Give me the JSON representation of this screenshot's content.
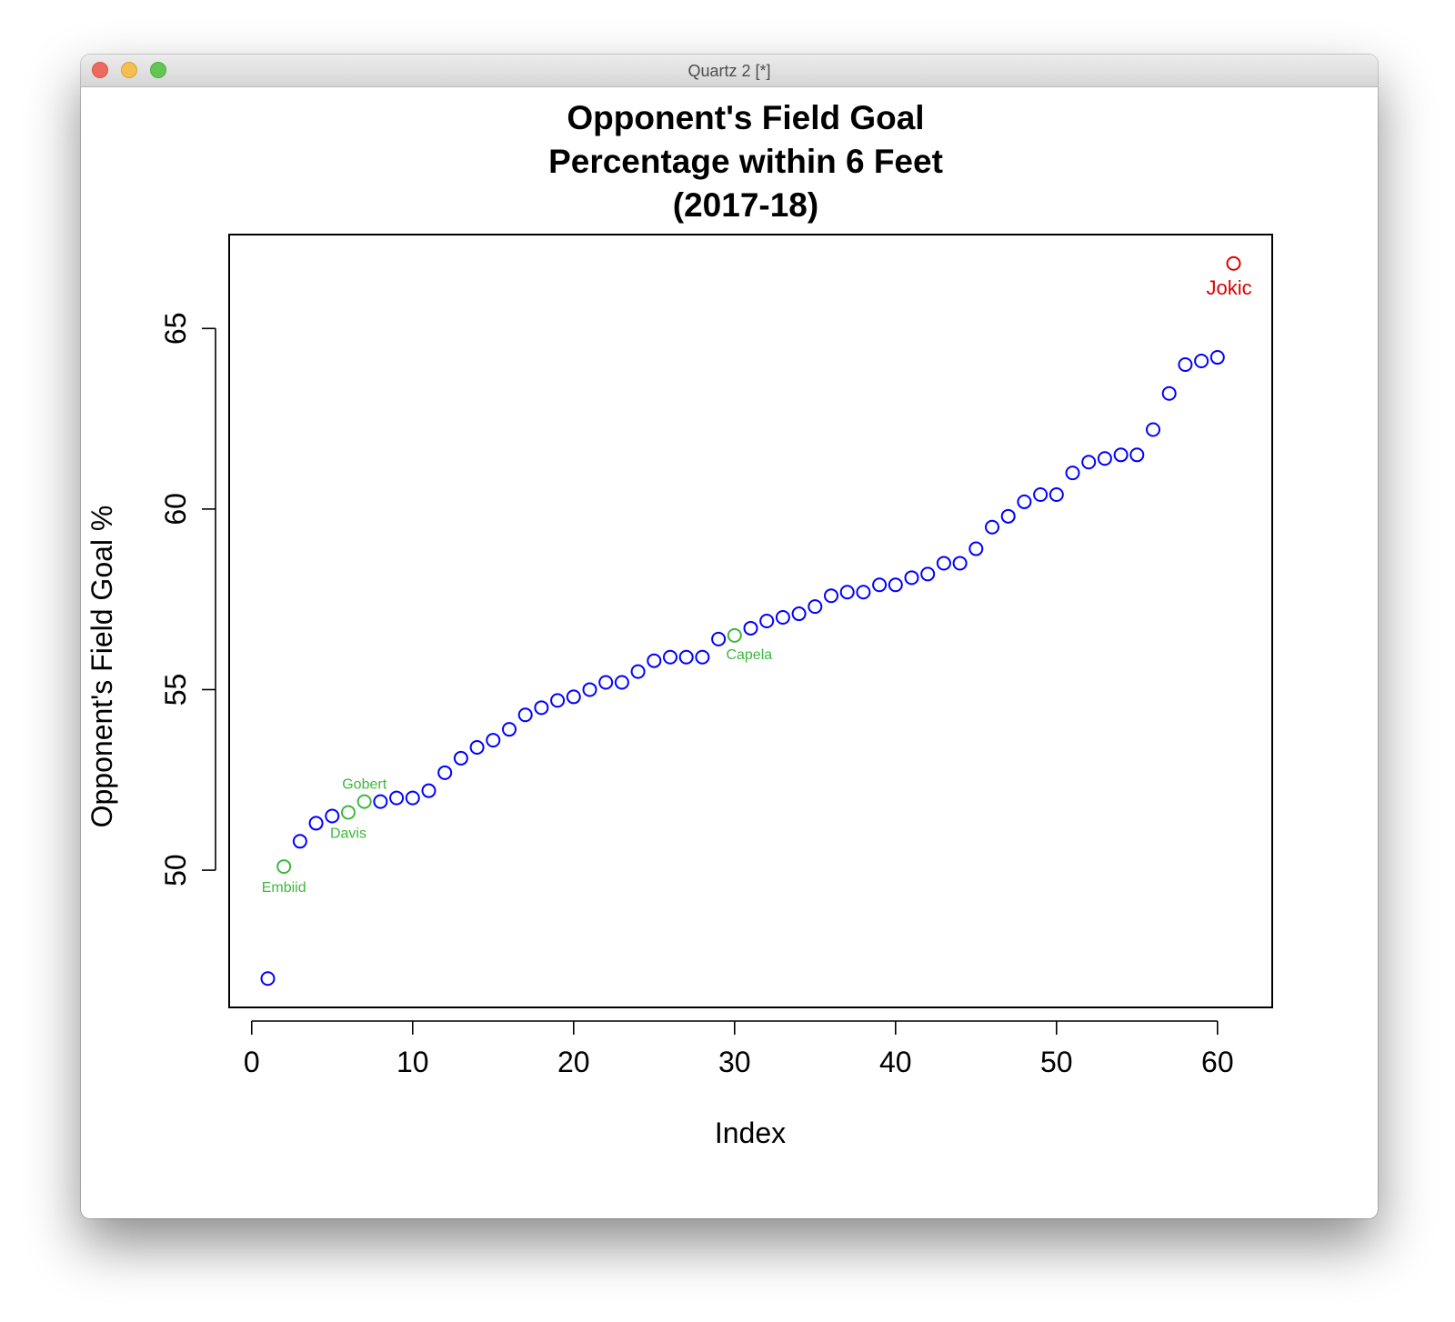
{
  "window": {
    "title": "Quartz 2 [*]"
  },
  "chart_data": {
    "type": "scatter",
    "title": [
      "Opponent's Field Goal",
      "Percentage within 6 Feet",
      "(2017-18)"
    ],
    "xlabel": "Index",
    "ylabel": "Opponent's Field Goal %",
    "xlim": [
      -1.4,
      63.4
    ],
    "ylim": [
      46.2,
      67.6
    ],
    "x_ticks": [
      0,
      10,
      20,
      30,
      40,
      50,
      60
    ],
    "y_ticks": [
      50,
      55,
      60,
      65
    ],
    "default_color": "#0000ff",
    "series": [
      {
        "x": [
          1,
          2,
          3,
          4,
          5,
          6,
          7,
          8,
          9,
          10,
          11,
          12,
          13,
          14,
          15,
          16,
          17,
          18,
          19,
          20,
          21,
          22,
          23,
          24,
          25,
          26,
          27,
          28,
          29,
          30,
          31,
          32,
          33,
          34,
          35,
          36,
          37,
          38,
          39,
          40,
          41,
          42,
          43,
          44,
          45,
          46,
          47,
          48,
          49,
          50,
          51,
          52,
          53,
          54,
          55,
          56,
          57,
          58,
          59,
          60,
          61
        ],
        "y": [
          47.0,
          50.1,
          50.8,
          51.3,
          51.5,
          51.6,
          51.9,
          51.9,
          52.0,
          52.0,
          52.2,
          52.7,
          53.1,
          53.4,
          53.6,
          53.9,
          54.3,
          54.5,
          54.7,
          54.8,
          55.0,
          55.2,
          55.2,
          55.5,
          55.8,
          55.9,
          55.9,
          55.9,
          56.4,
          56.5,
          56.7,
          56.9,
          57.0,
          57.1,
          57.3,
          57.6,
          57.7,
          57.7,
          57.9,
          57.9,
          58.1,
          58.2,
          58.5,
          58.5,
          58.9,
          59.5,
          59.8,
          60.2,
          60.4,
          60.4,
          61.0,
          61.3,
          61.4,
          61.5,
          61.5,
          62.2,
          63.2,
          64.0,
          64.1,
          64.2,
          66.8
        ]
      }
    ],
    "highlights": [
      {
        "index": 2,
        "label": "Embiid",
        "color": "#3cb83c",
        "label_pos": "below"
      },
      {
        "index": 6,
        "label": "Davis",
        "color": "#3cb83c",
        "label_pos": "below"
      },
      {
        "index": 7,
        "label": "Gobert",
        "color": "#3cb83c",
        "label_pos": "above"
      },
      {
        "index": 30,
        "label": "Capela",
        "color": "#3cb83c",
        "label_pos": "below-right"
      },
      {
        "index": 61,
        "label": "Jokic",
        "color": "#dd0000",
        "label_pos": "below"
      }
    ]
  }
}
